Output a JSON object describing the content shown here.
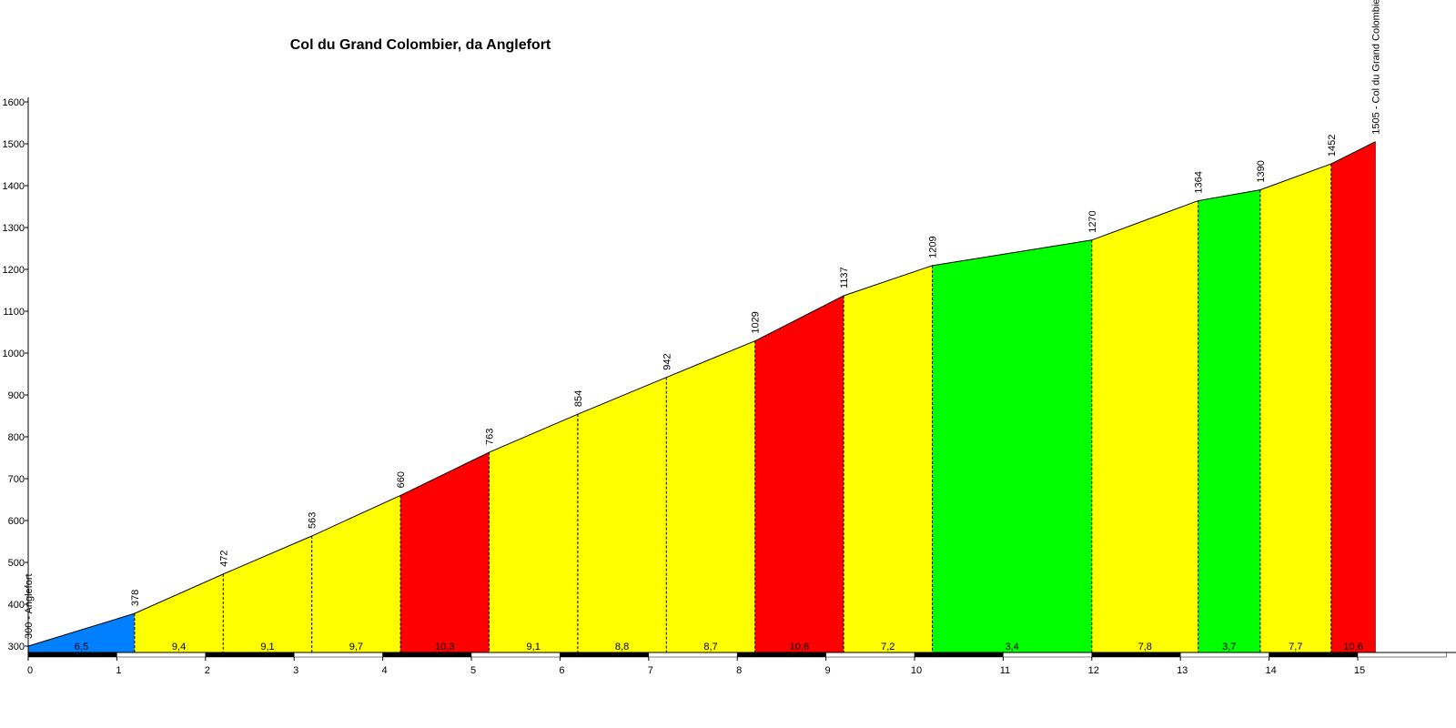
{
  "chart_data": {
    "type": "area",
    "title": "Col du Grand Colombier, da Anglefort",
    "xlabel": "",
    "ylabel": "",
    "xlim": [
      0,
      15.8
    ],
    "ylim": [
      290,
      1600
    ],
    "x_ticks": [
      0,
      1,
      2,
      3,
      4,
      5,
      6,
      7,
      8,
      9,
      10,
      11,
      12,
      13,
      14,
      15
    ],
    "x_tick_labels": [
      "0",
      "1",
      "2",
      "3",
      "4",
      "5",
      "6",
      "7",
      "8",
      "9",
      "10",
      "11",
      "12",
      "13",
      "14",
      "15"
    ],
    "y_ticks": [
      300,
      400,
      500,
      600,
      700,
      800,
      900,
      1000,
      1100,
      1200,
      1300,
      1400,
      1500,
      1600
    ],
    "y_tick_labels": [
      "300",
      "400",
      "500",
      "600",
      "700",
      "800",
      "900",
      "1000",
      "1100",
      "1200",
      "1300",
      "1400",
      "1500",
      "1600"
    ],
    "grid": false,
    "profile": [
      {
        "x": 0.0,
        "y": 300,
        "label": "300 - Anglefort"
      },
      {
        "x": 1.2,
        "y": 378,
        "label": "378"
      },
      {
        "x": 2.2,
        "y": 472,
        "label": "472"
      },
      {
        "x": 3.2,
        "y": 563,
        "label": "563"
      },
      {
        "x": 4.2,
        "y": 660,
        "label": "660"
      },
      {
        "x": 5.2,
        "y": 763,
        "label": "763"
      },
      {
        "x": 6.2,
        "y": 854,
        "label": "854"
      },
      {
        "x": 7.2,
        "y": 942,
        "label": "942"
      },
      {
        "x": 8.2,
        "y": 1029,
        "label": "1029"
      },
      {
        "x": 9.2,
        "y": 1137,
        "label": "1137"
      },
      {
        "x": 10.2,
        "y": 1209,
        "label": "1209"
      },
      {
        "x": 12.0,
        "y": 1270,
        "label": "1270"
      },
      {
        "x": 13.2,
        "y": 1364,
        "label": "1364"
      },
      {
        "x": 13.9,
        "y": 1390,
        "label": "1390"
      },
      {
        "x": 14.7,
        "y": 1452,
        "label": "1452"
      },
      {
        "x": 15.2,
        "y": 1505,
        "label": "1505 - Col du Grand Colombie"
      }
    ],
    "segments": [
      {
        "gradient": "6,5",
        "color": "#0080ff"
      },
      {
        "gradient": "9,4",
        "color": "#ffff00"
      },
      {
        "gradient": "9,1",
        "color": "#ffff00"
      },
      {
        "gradient": "9,7",
        "color": "#ffff00"
      },
      {
        "gradient": "10,3",
        "color": "#ff0000"
      },
      {
        "gradient": "9,1",
        "color": "#ffff00"
      },
      {
        "gradient": "8,8",
        "color": "#ffff00"
      },
      {
        "gradient": "8,7",
        "color": "#ffff00"
      },
      {
        "gradient": "10,8",
        "color": "#ff0000"
      },
      {
        "gradient": "7,2",
        "color": "#ffff00"
      },
      {
        "gradient": "3,4",
        "color": "#00ff00"
      },
      {
        "gradient": "7,8",
        "color": "#ffff00"
      },
      {
        "gradient": "3,7",
        "color": "#00ff00"
      },
      {
        "gradient": "7,7",
        "color": "#ffff00"
      },
      {
        "gradient": "10,6",
        "color": "#ff0000"
      }
    ]
  }
}
